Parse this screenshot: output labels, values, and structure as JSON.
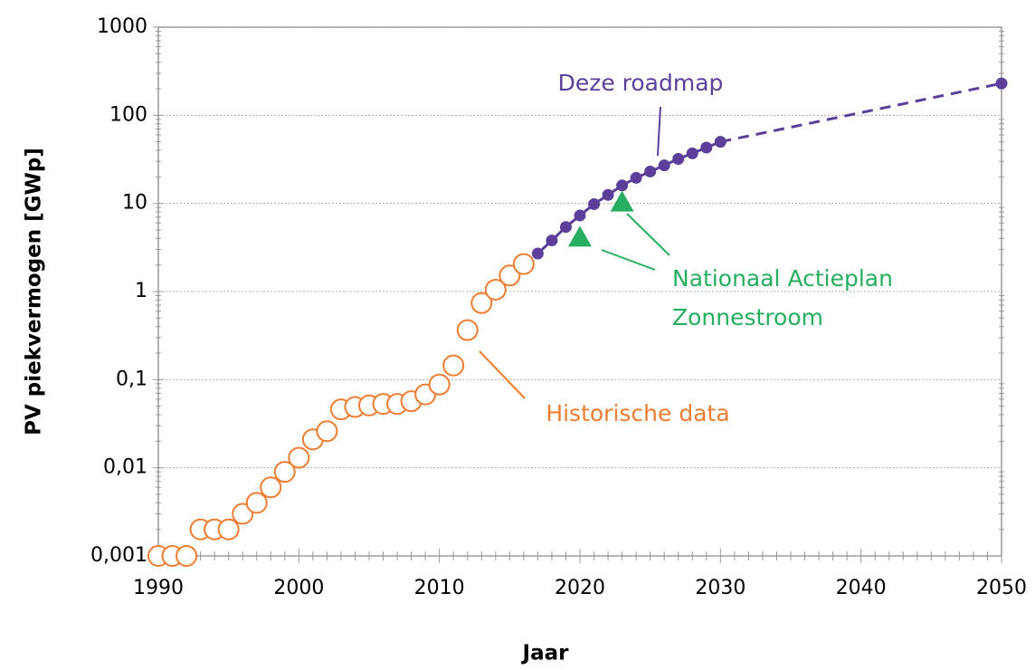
{
  "chart_data": {
    "type": "line",
    "xlabel": "Jaar",
    "ylabel": "PV piekvermogen [GWp]",
    "log_y": true,
    "grid": true,
    "xlim": [
      1990,
      2050
    ],
    "xticks": [
      1990,
      2000,
      2010,
      2020,
      2030,
      2040,
      2050
    ],
    "ylim": [
      0.001,
      1000
    ],
    "yticks": [
      {
        "value": 0.001,
        "label": "0,001"
      },
      {
        "value": 0.01,
        "label": "0,01"
      },
      {
        "value": 0.1,
        "label": "0,1"
      },
      1,
      10,
      100,
      1000
    ],
    "series": [
      {
        "marker": "open-circle",
        "color": "#ed7d31",
        "line": false,
        "x": [
          1990,
          1991,
          1992,
          1993,
          1994,
          1995,
          1996,
          1997,
          1998,
          1999,
          2000,
          2001,
          2002,
          2003,
          2004,
          2005,
          2006,
          2007,
          2008,
          2009,
          2010,
          2011,
          2012,
          2013,
          2014,
          2015,
          2016
        ],
        "values": [
          0.001,
          0.001,
          0.001,
          0.002,
          0.002,
          0.002,
          0.003,
          0.004,
          0.006,
          0.009,
          0.013,
          0.021,
          0.026,
          0.046,
          0.049,
          0.051,
          0.053,
          0.053,
          0.057,
          0.068,
          0.088,
          0.145,
          0.365,
          0.74,
          1.05,
          1.52,
          2.05
        ]
      },
      {
        "marker": "dot",
        "color": "#5b3f9a",
        "line": true,
        "dash_after": 2030,
        "x": [
          2017,
          2018,
          2019,
          2020,
          2021,
          2022,
          2023,
          2024,
          2025,
          2026,
          2027,
          2028,
          2029,
          2030,
          2050
        ],
        "values": [
          2.7,
          3.8,
          5.4,
          7.3,
          9.8,
          12.5,
          16,
          19.5,
          23,
          27,
          32,
          37,
          43,
          50,
          230
        ]
      },
      {
        "marker": "triangle",
        "color": "#27ae60",
        "line": false,
        "x": [
          2020,
          2023
        ],
        "values": [
          4,
          10
        ]
      }
    ],
    "annotations": [
      {
        "text": "Deze roadmap",
        "color": "#5b3f9a"
      },
      {
        "text": "Historische data",
        "color": "#ed7d31"
      },
      {
        "text": "Nationaal Actieplan",
        "color": "#27ae60"
      },
      {
        "text": "Zonnestroom",
        "color": "#27ae60"
      }
    ]
  }
}
